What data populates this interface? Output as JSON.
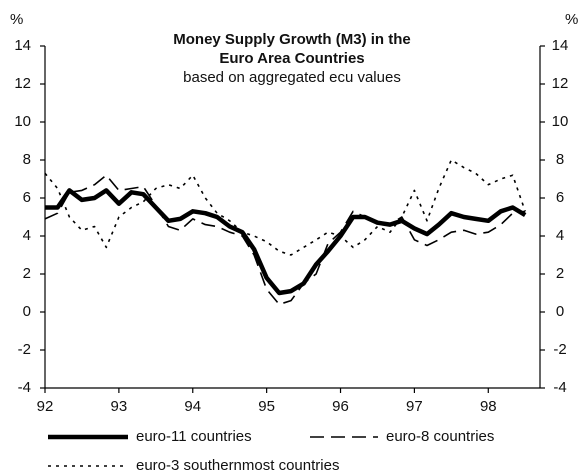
{
  "chart_data": {
    "type": "line",
    "title": [
      "Money Supply Growth (M3) in the",
      "Euro Area Countries"
    ],
    "subtitle": "based on aggregated ecu values",
    "y_label": "%",
    "y2_label": "%",
    "xlim": [
      92,
      98.7
    ],
    "xticks": [
      92,
      93,
      94,
      95,
      96,
      97,
      98
    ],
    "ylim": [
      -4,
      14
    ],
    "yticks": [
      -4,
      -2,
      0,
      2,
      4,
      6,
      8,
      10,
      12,
      14
    ],
    "y2lim": [
      -4,
      14
    ],
    "y2ticks": [
      -4,
      -2,
      0,
      2,
      4,
      6,
      8,
      10,
      12,
      14
    ],
    "grid": false,
    "x": [
      92,
      92.17,
      92.33,
      92.5,
      92.67,
      92.83,
      93,
      93.17,
      93.33,
      93.5,
      93.67,
      93.83,
      94,
      94.17,
      94.33,
      94.5,
      94.67,
      94.83,
      95,
      95.17,
      95.33,
      95.5,
      95.67,
      95.83,
      96,
      96.17,
      96.33,
      96.5,
      96.67,
      96.83,
      97,
      97.17,
      97.33,
      97.5,
      97.67,
      97.83,
      98,
      98.17,
      98.33,
      98.5
    ],
    "series": [
      {
        "name": "euro-11 countries",
        "color": "#000000",
        "dash": "solid",
        "width": 4.5,
        "values": [
          5.5,
          5.5,
          6.4,
          5.9,
          6.0,
          6.4,
          5.7,
          6.3,
          6.2,
          5.5,
          4.8,
          4.9,
          5.3,
          5.2,
          5.0,
          4.5,
          4.2,
          3.3,
          1.8,
          1.0,
          1.1,
          1.5,
          2.5,
          3.2,
          4.0,
          5.0,
          5.0,
          4.7,
          4.6,
          4.8,
          4.4,
          4.1,
          4.6,
          5.2,
          5.0,
          4.9,
          4.8,
          5.3,
          5.5,
          5.1
        ]
      },
      {
        "name": "euro-8 countries",
        "color": "#000000",
        "dash": "dashed",
        "width": 1.6,
        "values": [
          4.9,
          5.2,
          6.3,
          6.4,
          6.7,
          7.2,
          6.4,
          6.5,
          6.6,
          5.6,
          4.5,
          4.3,
          4.9,
          4.6,
          4.5,
          4.2,
          4.0,
          3.0,
          1.2,
          0.4,
          0.6,
          1.5,
          2.0,
          3.6,
          4.2,
          5.3,
          5.0,
          4.7,
          4.6,
          5.0,
          3.8,
          3.5,
          3.8,
          4.2,
          4.3,
          4.1,
          4.2,
          4.6,
          5.2,
          5.3
        ]
      },
      {
        "name": "euro-3 southernmost countries",
        "color": "#000000",
        "dash": "dotted",
        "width": 1.6,
        "values": [
          7.3,
          6.5,
          5.0,
          4.3,
          4.5,
          3.4,
          5.0,
          5.5,
          5.8,
          6.5,
          6.7,
          6.5,
          7.2,
          6.0,
          5.2,
          4.8,
          4.2,
          4.0,
          3.7,
          3.2,
          3.0,
          3.4,
          3.8,
          4.2,
          4.0,
          3.4,
          3.8,
          4.5,
          4.2,
          5.0,
          6.4,
          4.8,
          6.5,
          8.0,
          7.6,
          7.3,
          6.7,
          7.0,
          7.2,
          5.3
        ]
      }
    ]
  }
}
